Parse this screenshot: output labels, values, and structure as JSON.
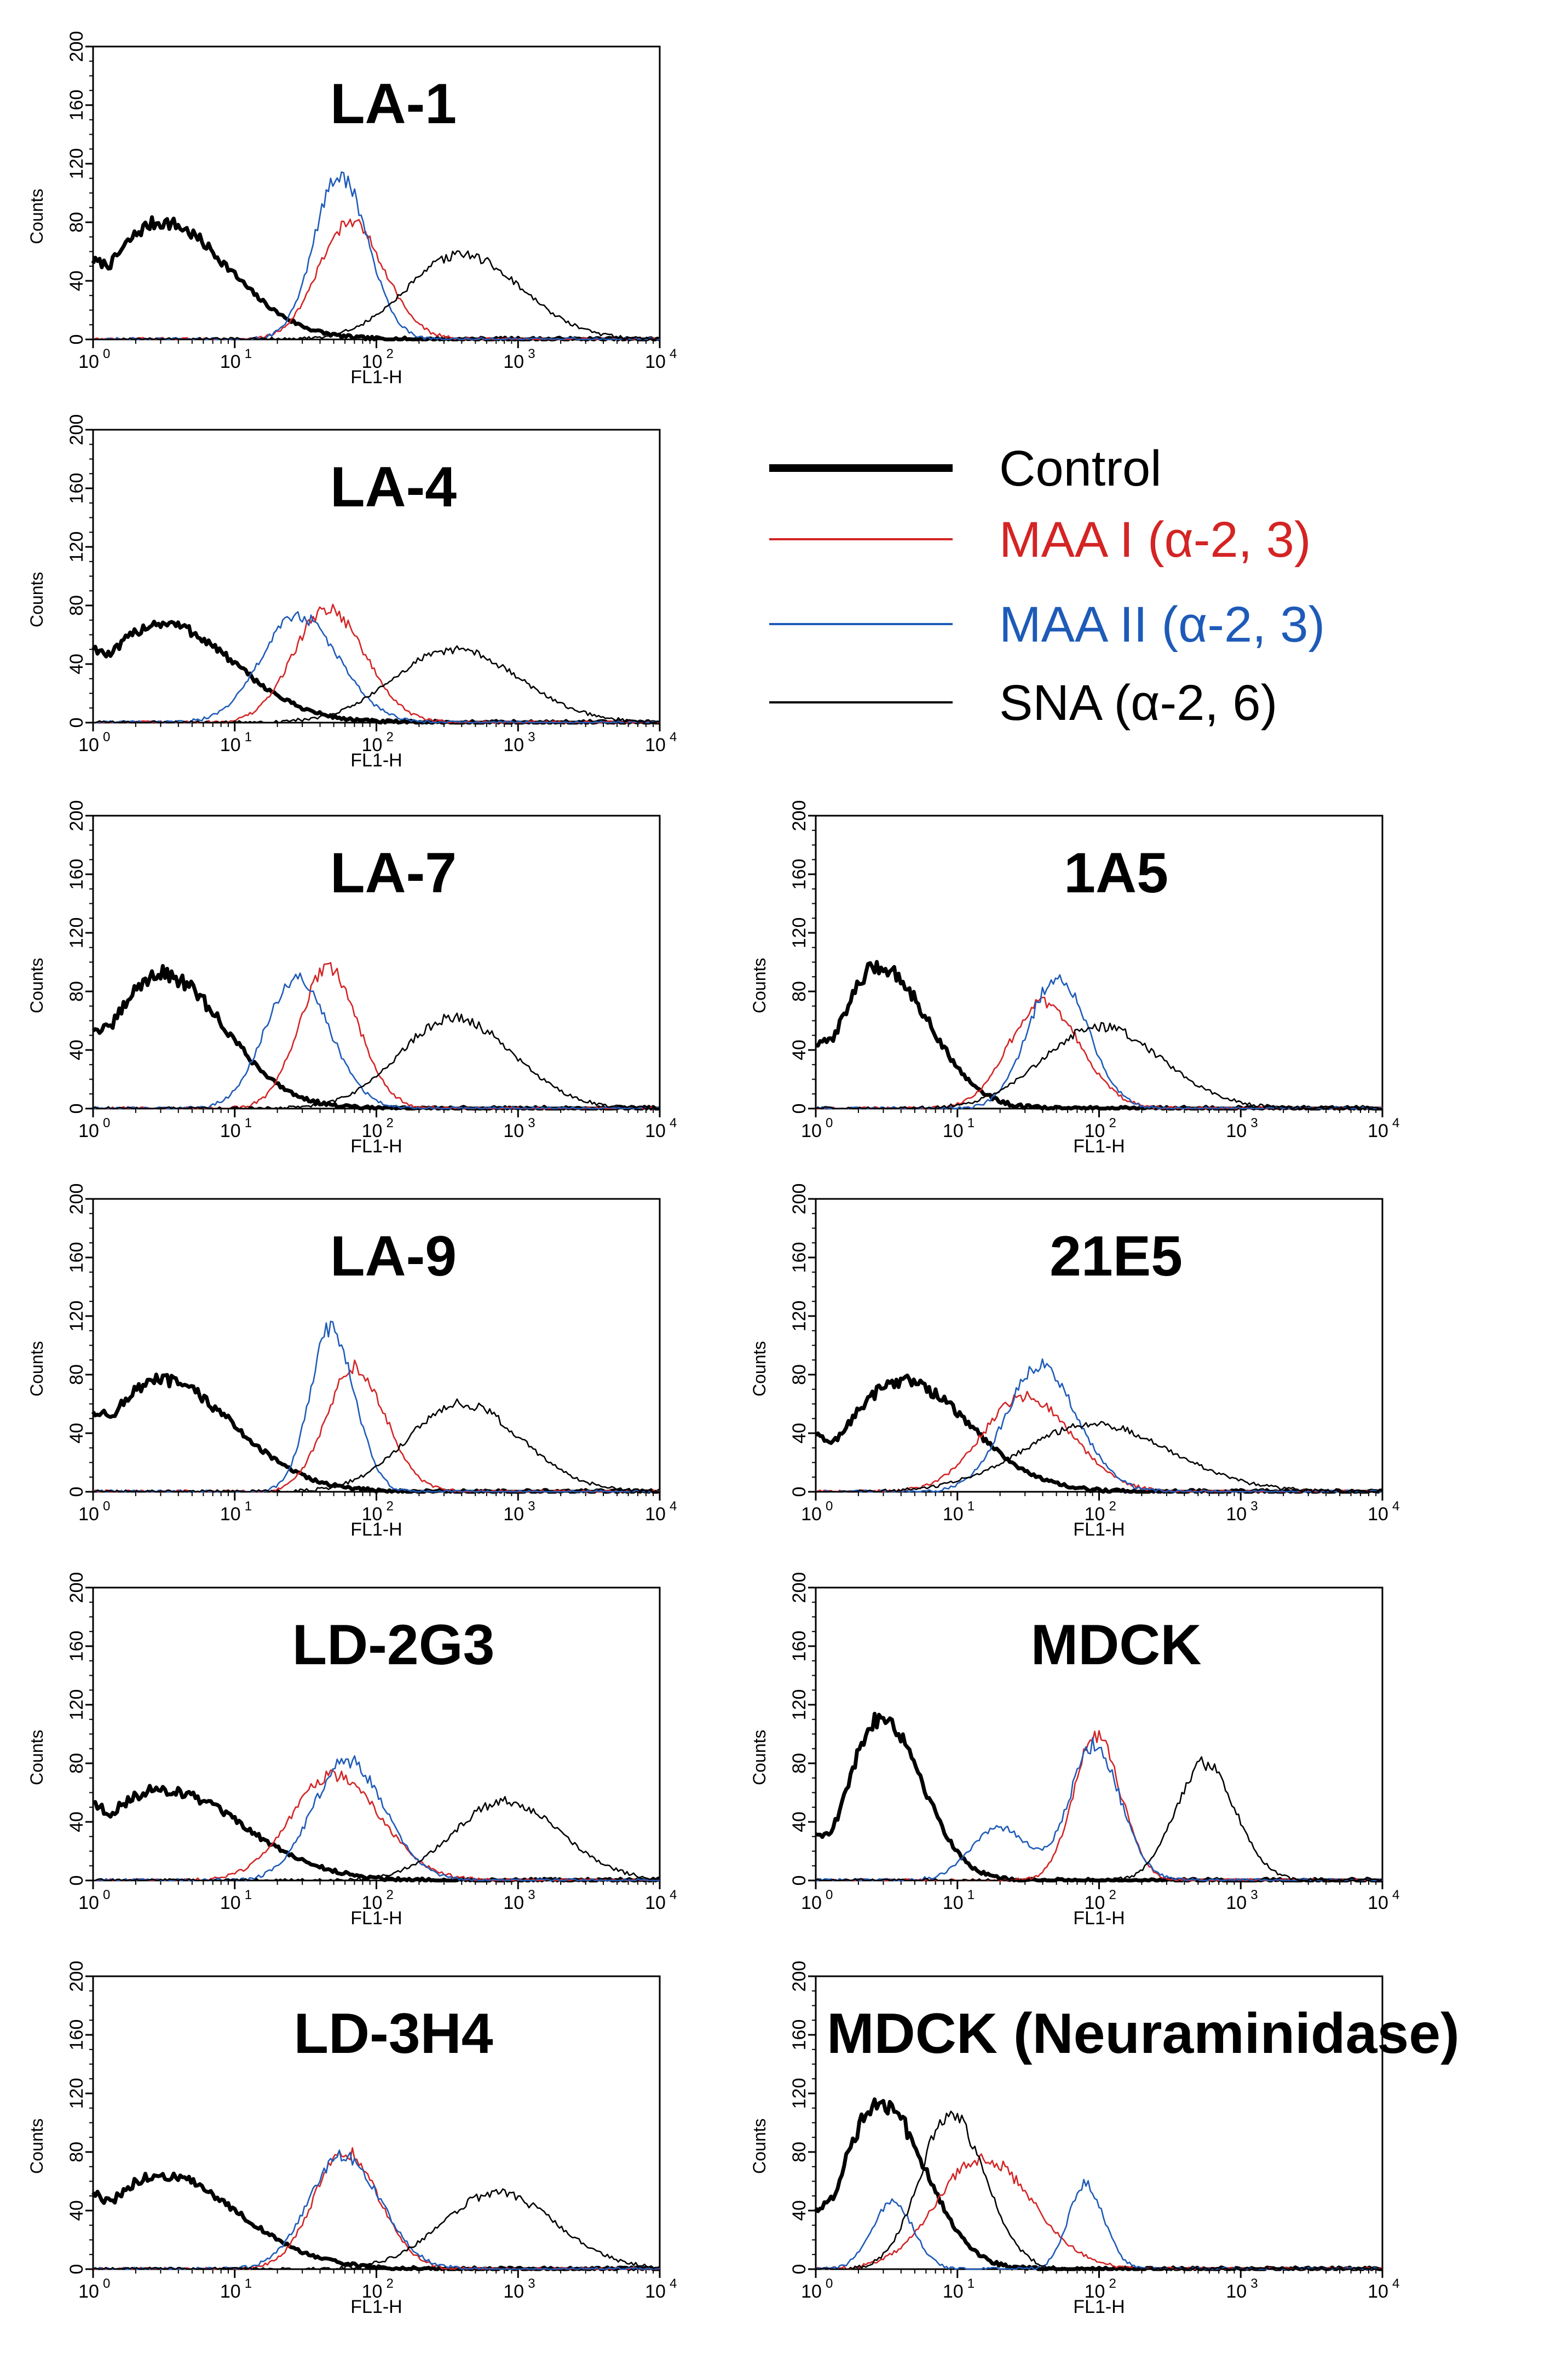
{
  "legend": [
    {
      "key": "control",
      "label": "Control",
      "color": "#000000",
      "heavy": true
    },
    {
      "key": "maa1",
      "label": "MAA I (α-2, 3)",
      "color": "#d42424",
      "heavy": false
    },
    {
      "key": "maa2",
      "label": "MAA II (α-2, 3)",
      "color": "#1e5bb8",
      "heavy": false
    },
    {
      "key": "sna",
      "label": "SNA (α-2, 6)",
      "color": "#000000",
      "heavy": false
    }
  ],
  "chart_data": [
    {
      "type": "line",
      "title": "LA-1",
      "xlabel": "FL1-H",
      "ylabel": "Counts",
      "xscale": "log",
      "xlim": [
        1,
        10000
      ],
      "ylim": [
        0,
        200
      ],
      "y_ticks": [
        "0",
        "40",
        "80",
        "120",
        "160",
        "200"
      ],
      "x_tick_bases": [
        "10",
        "10",
        "10",
        "10",
        "10"
      ],
      "x_tick_exps": [
        "0",
        "1",
        "2",
        "3",
        "4"
      ],
      "series": [
        {
          "name": "Control",
          "peak_x": 3,
          "peak_y": 80,
          "width": 0.3
        },
        {
          "name": "MAA I (α-2, 3)",
          "peak_x": 65,
          "peak_y": 80,
          "width": 0.22
        },
        {
          "name": "MAA II (α-2, 3)",
          "peak_x": 55,
          "peak_y": 112,
          "width": 0.18
        },
        {
          "name": "SNA (α-2, 6)",
          "peak_x": 400,
          "peak_y": 58,
          "width": 0.38
        }
      ]
    },
    {
      "type": "line",
      "title": "LA-4",
      "xlabel": "FL1-H",
      "ylabel": "Counts",
      "xscale": "log",
      "xlim": [
        1,
        10000
      ],
      "ylim": [
        0,
        200
      ],
      "y_ticks": [
        "0",
        "40",
        "80",
        "120",
        "160",
        "200"
      ],
      "x_tick_bases": [
        "10",
        "10",
        "10",
        "10",
        "10"
      ],
      "x_tick_exps": [
        "0",
        "1",
        "2",
        "3",
        "4"
      ],
      "series": [
        {
          "name": "Control",
          "peak_x": 3,
          "peak_y": 68,
          "width": 0.32
        },
        {
          "name": "MAA I (α-2, 3)",
          "peak_x": 45,
          "peak_y": 78,
          "width": 0.24
        },
        {
          "name": "MAA II (α-2, 3)",
          "peak_x": 28,
          "peak_y": 73,
          "width": 0.26
        },
        {
          "name": "SNA (α-2, 6)",
          "peak_x": 350,
          "peak_y": 50,
          "width": 0.42
        }
      ]
    },
    {
      "type": "line",
      "title": "LA-7",
      "xlabel": "FL1-H",
      "ylabel": "Counts",
      "xscale": "log",
      "xlim": [
        1,
        10000
      ],
      "ylim": [
        0,
        200
      ],
      "y_ticks": [
        "0",
        "40",
        "80",
        "120",
        "160",
        "200"
      ],
      "x_tick_bases": [
        "10",
        "10",
        "10",
        "10",
        "10"
      ],
      "x_tick_exps": [
        "0",
        "1",
        "2",
        "3",
        "4"
      ],
      "series": [
        {
          "name": "Control",
          "peak_x": 3,
          "peak_y": 92,
          "width": 0.28
        },
        {
          "name": "MAA I (α-2, 3)",
          "peak_x": 45,
          "peak_y": 95,
          "width": 0.2
        },
        {
          "name": "MAA II (α-2, 3)",
          "peak_x": 27,
          "peak_y": 88,
          "width": 0.22
        },
        {
          "name": "SNA (α-2, 6)",
          "peak_x": 350,
          "peak_y": 62,
          "width": 0.38
        }
      ]
    },
    {
      "type": "line",
      "title": "1A5",
      "xlabel": "FL1-H",
      "ylabel": "Counts",
      "xscale": "log",
      "xlim": [
        1,
        10000
      ],
      "ylim": [
        0,
        200
      ],
      "y_ticks": [
        "0",
        "40",
        "80",
        "120",
        "160",
        "200"
      ],
      "x_tick_bases": [
        "10",
        "10",
        "10",
        "10",
        "10"
      ],
      "x_tick_exps": [
        "0",
        "1",
        "2",
        "3",
        "4"
      ],
      "series": [
        {
          "name": "Control",
          "peak_x": 2.8,
          "peak_y": 97,
          "width": 0.22
        },
        {
          "name": "MAA I (α-2, 3)",
          "peak_x": 40,
          "peak_y": 72,
          "width": 0.24
        },
        {
          "name": "MAA II (α-2, 3)",
          "peak_x": 50,
          "peak_y": 90,
          "width": 0.2
        },
        {
          "name": "SNA (α-2, 6)",
          "peak_x": 100,
          "peak_y": 56,
          "width": 0.4
        }
      ]
    },
    {
      "type": "line",
      "title": "LA-9",
      "xlabel": "FL1-H",
      "ylabel": "Counts",
      "xscale": "log",
      "xlim": [
        1,
        10000
      ],
      "ylim": [
        0,
        200
      ],
      "y_ticks": [
        "0",
        "40",
        "80",
        "120",
        "160",
        "200"
      ],
      "x_tick_bases": [
        "10",
        "10",
        "10",
        "10",
        "10"
      ],
      "x_tick_exps": [
        "0",
        "1",
        "2",
        "3",
        "4"
      ],
      "series": [
        {
          "name": "Control",
          "peak_x": 3,
          "peak_y": 76,
          "width": 0.32
        },
        {
          "name": "MAA I (α-2, 3)",
          "peak_x": 70,
          "peak_y": 85,
          "width": 0.2
        },
        {
          "name": "MAA II (α-2, 3)",
          "peak_x": 48,
          "peak_y": 112,
          "width": 0.15
        },
        {
          "name": "SNA (α-2, 6)",
          "peak_x": 400,
          "peak_y": 60,
          "width": 0.38
        }
      ]
    },
    {
      "type": "line",
      "title": "21E5",
      "xlabel": "FL1-H",
      "ylabel": "Counts",
      "xscale": "log",
      "xlim": [
        1,
        10000
      ],
      "ylim": [
        0,
        200
      ],
      "y_ticks": [
        "0",
        "40",
        "80",
        "120",
        "160",
        "200"
      ],
      "x_tick_bases": [
        "10",
        "10",
        "10",
        "10",
        "10"
      ],
      "x_tick_exps": [
        "0",
        "1",
        "2",
        "3",
        "4"
      ],
      "series": [
        {
          "name": "Control",
          "peak_x": 4,
          "peak_y": 76,
          "width": 0.3
        },
        {
          "name": "MAA I (α-2, 3)",
          "peak_x": 30,
          "peak_y": 65,
          "width": 0.3
        },
        {
          "name": "MAA II (α-2, 3)",
          "peak_x": 38,
          "peak_y": 86,
          "width": 0.24
        },
        {
          "name": "SNA (α-2, 6)",
          "peak_x": 90,
          "peak_y": 46,
          "width": 0.5
        }
      ]
    },
    {
      "type": "line",
      "title": "LD-2G3",
      "xlabel": "FL1-H",
      "ylabel": "Counts",
      "xscale": "log",
      "xlim": [
        1,
        10000
      ],
      "ylim": [
        0,
        200
      ],
      "y_ticks": [
        "0",
        "40",
        "80",
        "120",
        "160",
        "200"
      ],
      "x_tick_bases": [
        "10",
        "10",
        "10",
        "10",
        "10"
      ],
      "x_tick_exps": [
        "0",
        "1",
        "2",
        "3",
        "4"
      ],
      "series": [
        {
          "name": "Control",
          "peak_x": 3,
          "peak_y": 62,
          "width": 0.36
        },
        {
          "name": "MAA I (α-2, 3)",
          "peak_x": 50,
          "peak_y": 72,
          "width": 0.3
        },
        {
          "name": "MAA II (α-2, 3)",
          "peak_x": 62,
          "peak_y": 82,
          "width": 0.24
        },
        {
          "name": "SNA (α-2, 6)",
          "peak_x": 800,
          "peak_y": 54,
          "width": 0.36
        }
      ]
    },
    {
      "type": "line",
      "title": "MDCK",
      "xlabel": "FL1-H",
      "ylabel": "Counts",
      "xscale": "log",
      "xlim": [
        1,
        10000
      ],
      "ylim": [
        0,
        200
      ],
      "y_ticks": [
        "0",
        "40",
        "80",
        "120",
        "160",
        "200"
      ],
      "x_tick_bases": [
        "10",
        "10",
        "10",
        "10",
        "10"
      ],
      "x_tick_exps": [
        "0",
        "1",
        "2",
        "3",
        "4"
      ],
      "series": [
        {
          "name": "Control",
          "peak_x": 2.9,
          "peak_y": 112,
          "width": 0.18
        },
        {
          "name": "MAA I (α-2, 3)",
          "peak_x": 95,
          "peak_y": 98,
          "width": 0.16
        },
        {
          "name": "MAA II (α-2, 3)",
          "peak_x": 92,
          "peak_y": 92,
          "width": 0.17,
          "minor_peak_x": 20,
          "minor_peak_y": 36
        },
        {
          "name": "SNA (α-2, 6)",
          "peak_x": 550,
          "peak_y": 80,
          "width": 0.2
        }
      ]
    },
    {
      "type": "line",
      "title": "LD-3H4",
      "xlabel": "FL1-H",
      "ylabel": "Counts",
      "xscale": "log",
      "xlim": [
        1,
        10000
      ],
      "ylim": [
        0,
        200
      ],
      "y_ticks": [
        "0",
        "40",
        "80",
        "120",
        "160",
        "200"
      ],
      "x_tick_bases": [
        "10",
        "10",
        "10",
        "10",
        "10"
      ],
      "x_tick_exps": [
        "0",
        "1",
        "2",
        "3",
        "4"
      ],
      "series": [
        {
          "name": "Control",
          "peak_x": 3,
          "peak_y": 64,
          "width": 0.34
        },
        {
          "name": "MAA I (α-2, 3)",
          "peak_x": 60,
          "peak_y": 80,
          "width": 0.22
        },
        {
          "name": "MAA II (α-2, 3)",
          "peak_x": 58,
          "peak_y": 78,
          "width": 0.24
        },
        {
          "name": "SNA (α-2, 6)",
          "peak_x": 700,
          "peak_y": 52,
          "width": 0.38
        }
      ]
    },
    {
      "type": "line",
      "title": "MDCK (Neuraminidase)",
      "xlabel": "FL1-H",
      "ylabel": "Counts",
      "xscale": "log",
      "xlim": [
        1,
        10000
      ],
      "ylim": [
        0,
        200
      ],
      "y_ticks": [
        "0",
        "40",
        "80",
        "120",
        "160",
        "200"
      ],
      "x_tick_bases": [
        "10",
        "10",
        "10",
        "10",
        "10"
      ],
      "x_tick_exps": [
        "0",
        "1",
        "2",
        "3",
        "4"
      ],
      "series": [
        {
          "name": "Control",
          "peak_x": 2.8,
          "peak_y": 115,
          "width": 0.2
        },
        {
          "name": "MAA I (α-2, 3)",
          "peak_x": 15,
          "peak_y": 76,
          "width": 0.32
        },
        {
          "name": "MAA II (α-2, 3)",
          "peak_x": 80,
          "peak_y": 58,
          "width": 0.12,
          "minor_peak_x": 3.5,
          "minor_peak_y": 46
        },
        {
          "name": "SNA (α-2, 6)",
          "peak_x": 9,
          "peak_y": 105,
          "width": 0.22
        }
      ]
    }
  ]
}
